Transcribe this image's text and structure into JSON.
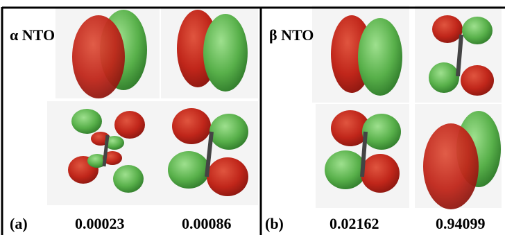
{
  "panels": [
    {
      "title": "α NTO",
      "label": "(a)",
      "values": [
        0.00023,
        0.00086
      ]
    },
    {
      "title": "β NTO",
      "label": "(b)",
      "values": [
        0.02162,
        0.94099
      ]
    }
  ]
}
